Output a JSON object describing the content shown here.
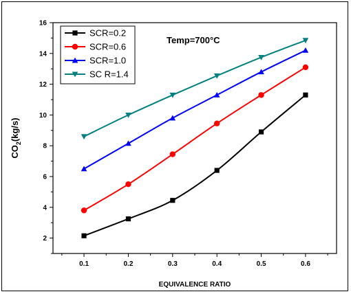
{
  "chart_data": {
    "type": "line",
    "xlabel": "EQUIVALENCE RATIO",
    "ylabel_main": "CO",
    "ylabel_sub": "2",
    "ylabel_tail": "(kg/s)",
    "x": [
      0.1,
      0.2,
      0.3,
      0.4,
      0.5,
      0.6
    ],
    "x_ticks": [
      "0.1",
      "0.2",
      "0.3",
      "0.4",
      "0.5",
      "0.6"
    ],
    "y_ticks": [
      "2",
      "4",
      "6",
      "8",
      "10",
      "12",
      "14",
      "16"
    ],
    "xlim": [
      0.03,
      0.67
    ],
    "ylim": [
      1,
      16
    ],
    "grid": false,
    "legend_position": "top-left",
    "annotation": "Temp=700°C",
    "series": [
      {
        "name": "SCR=0.2",
        "color": "#000000",
        "marker": "square",
        "values": [
          2.15,
          3.25,
          4.45,
          6.4,
          8.9,
          11.3
        ]
      },
      {
        "name": "SCR=0.6",
        "color": "#ff0000",
        "marker": "circle",
        "values": [
          3.8,
          5.5,
          7.45,
          9.45,
          11.3,
          13.1
        ]
      },
      {
        "name": "SCR=1.0",
        "color": "#0000ff",
        "marker": "triangle-up",
        "values": [
          6.5,
          8.15,
          9.8,
          11.3,
          12.8,
          14.2
        ]
      },
      {
        "name": "SC R=1.4",
        "color": "#008080",
        "marker": "triangle-down",
        "values": [
          8.6,
          10.0,
          11.3,
          12.55,
          13.75,
          14.85
        ]
      }
    ]
  }
}
